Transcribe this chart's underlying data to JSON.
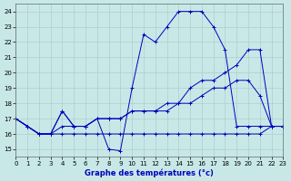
{
  "xlabel": "Graphe des températures (°c)",
  "bg_color": "#c8e8e8",
  "line_color": "#0000bb",
  "grid_color": "#b0cccc",
  "xlim": [
    0,
    23
  ],
  "ylim": [
    14.5,
    24.5
  ],
  "yticks": [
    15,
    16,
    17,
    18,
    19,
    20,
    21,
    22,
    23,
    24
  ],
  "xticks": [
    0,
    1,
    2,
    3,
    4,
    5,
    6,
    7,
    8,
    9,
    10,
    11,
    12,
    13,
    14,
    15,
    16,
    17,
    18,
    19,
    20,
    21,
    22,
    23
  ],
  "s1x": [
    0,
    1,
    2,
    3,
    4,
    5,
    6,
    7,
    8,
    9,
    10,
    11,
    12,
    13,
    14,
    15,
    16,
    17,
    18,
    19,
    20,
    21,
    22,
    23
  ],
  "s1y": [
    17.0,
    16.5,
    16.0,
    16.0,
    17.5,
    16.5,
    16.5,
    17.0,
    15.0,
    14.9,
    19.0,
    22.5,
    22.0,
    23.0,
    24.0,
    24.0,
    24.0,
    23.0,
    21.5,
    16.5,
    16.5,
    16.5,
    16.5,
    16.5
  ],
  "s2x": [
    0,
    1,
    2,
    3,
    4,
    5,
    6,
    7,
    8,
    9,
    10,
    11,
    12,
    13,
    14,
    15,
    16,
    17,
    18,
    19,
    20,
    21,
    22,
    23
  ],
  "s2y": [
    17.0,
    16.5,
    16.0,
    16.0,
    16.0,
    16.0,
    16.0,
    16.0,
    16.0,
    16.0,
    16.0,
    16.0,
    16.0,
    16.0,
    16.0,
    16.0,
    16.0,
    16.0,
    16.0,
    16.0,
    16.0,
    16.0,
    16.5,
    16.5
  ],
  "s3x": [
    0,
    1,
    2,
    3,
    4,
    5,
    6,
    7,
    8,
    9,
    10,
    11,
    12,
    13,
    14,
    15,
    16,
    17,
    18,
    19,
    20,
    21,
    22,
    23
  ],
  "s3y": [
    17.0,
    16.5,
    16.0,
    16.0,
    16.5,
    16.5,
    16.5,
    17.0,
    17.0,
    17.0,
    17.5,
    17.5,
    17.5,
    17.5,
    18.0,
    18.0,
    18.5,
    19.0,
    19.0,
    19.5,
    19.5,
    18.5,
    16.5,
    16.5
  ],
  "s4x": [
    0,
    1,
    2,
    3,
    4,
    5,
    6,
    7,
    8,
    9,
    10,
    11,
    12,
    13,
    14,
    15,
    16,
    17,
    18,
    19,
    20,
    21,
    22,
    23
  ],
  "s4y": [
    17.0,
    16.5,
    16.0,
    16.0,
    17.5,
    16.5,
    16.5,
    17.0,
    17.0,
    17.0,
    17.5,
    17.5,
    17.5,
    18.0,
    18.0,
    19.0,
    19.5,
    19.5,
    20.0,
    20.5,
    21.5,
    21.5,
    16.5,
    16.5
  ]
}
